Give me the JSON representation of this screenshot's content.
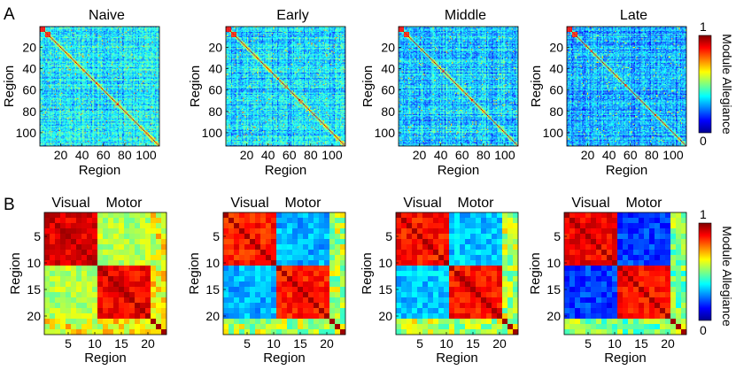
{
  "chart_data": {
    "type": "heatmap",
    "panels": [
      {
        "label": "A",
        "xlabel": "Region",
        "ylabel": "Region",
        "n": 112,
        "block_boundaries": [
          5,
          10
        ],
        "xticks": [
          20,
          40,
          60,
          80,
          100
        ],
        "yticks": [
          20,
          40,
          60,
          80,
          100
        ],
        "plots": [
          {
            "title": "Naive",
            "overall_level": 0.36
          },
          {
            "title": "Early",
            "overall_level": 0.34
          },
          {
            "title": "Middle",
            "overall_level": 0.32
          },
          {
            "title": "Late",
            "overall_level": 0.3
          }
        ],
        "colorbar": {
          "label": "Module Allegiance",
          "min": "0",
          "max": "1",
          "vmin": 0,
          "vmax": 1
        }
      },
      {
        "label": "B",
        "xlabel": "Region",
        "ylabel": "Region",
        "n": 23,
        "group_labels": [
          "Visual",
          "Motor"
        ],
        "visual_range": [
          1,
          10
        ],
        "motor_range": [
          11,
          20
        ],
        "xticks": [
          5,
          10,
          15,
          20
        ],
        "yticks": [
          5,
          10,
          15,
          20
        ],
        "plots": [
          {
            "title": "",
            "within_visual": 0.9,
            "within_motor": 0.88,
            "between": 0.55,
            "other": 0.62
          },
          {
            "title": "",
            "within_visual": 0.85,
            "within_motor": 0.85,
            "between": 0.3,
            "other": 0.55
          },
          {
            "title": "",
            "within_visual": 0.86,
            "within_motor": 0.86,
            "between": 0.32,
            "other": 0.56
          },
          {
            "title": "",
            "within_visual": 0.88,
            "within_motor": 0.86,
            "between": 0.18,
            "other": 0.5
          }
        ],
        "colorbar": {
          "label": "Module Allegiance",
          "min": "0",
          "max": "1",
          "vmin": 0,
          "vmax": 1
        }
      }
    ]
  }
}
